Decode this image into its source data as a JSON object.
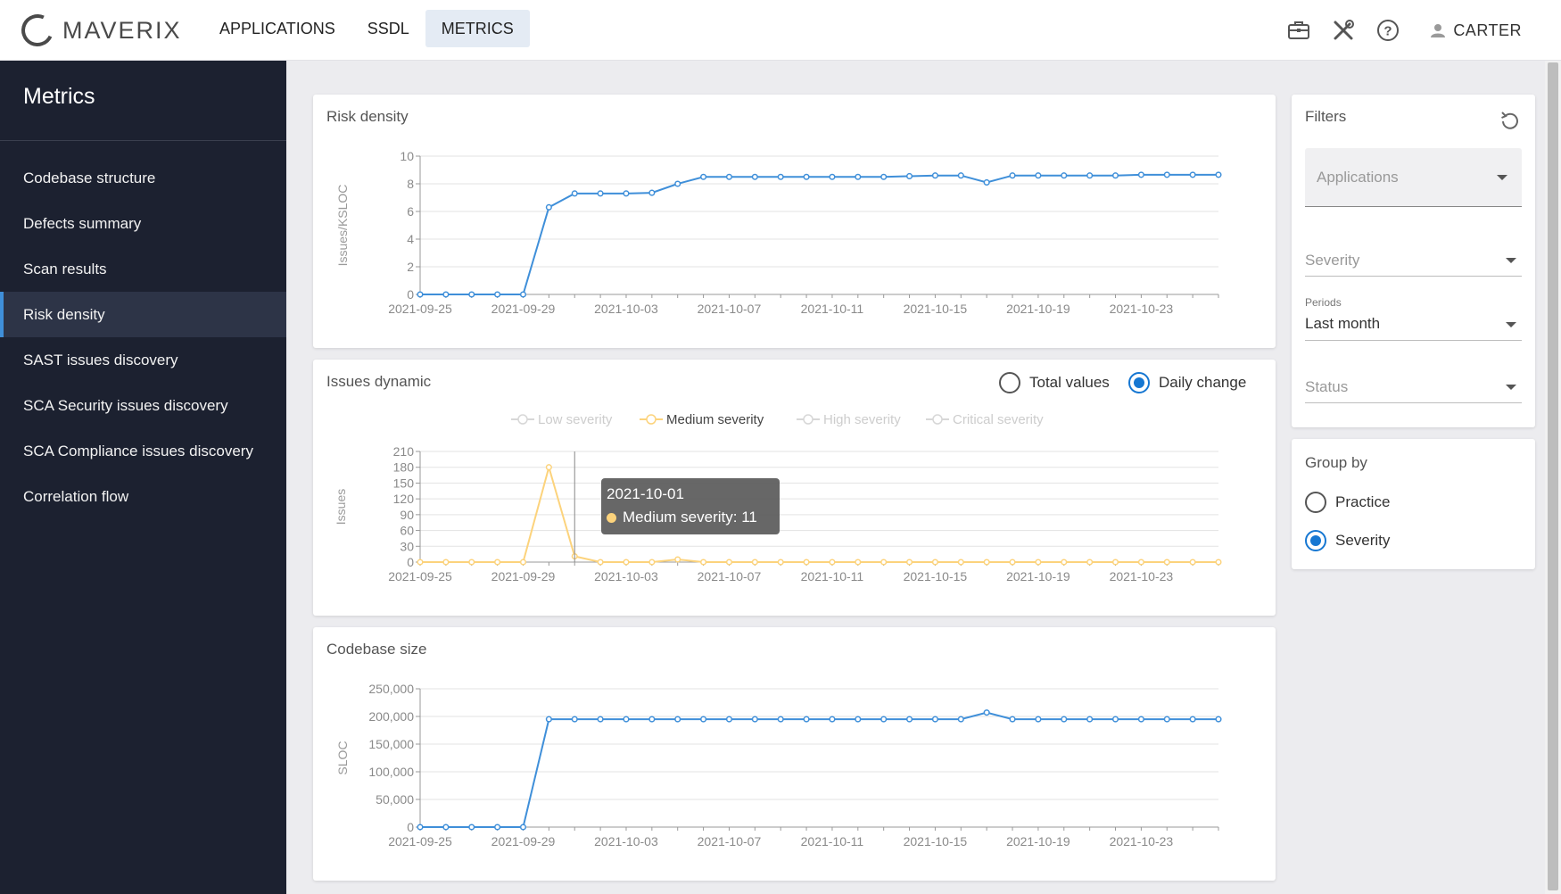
{
  "app": {
    "name": "MAVERIX"
  },
  "nav": {
    "items": [
      "APPLICATIONS",
      "SSDL",
      "METRICS"
    ],
    "active": "METRICS"
  },
  "user": {
    "name": "CARTER"
  },
  "icons": {
    "toolbox": "briefcase-icon",
    "tools": "wrench-screwdriver-icon",
    "help": "help-circle-icon",
    "user": "user-icon",
    "refresh": "refresh-icon"
  },
  "colors": {
    "accent": "#1677d2",
    "line_blue": "#3f8fd9",
    "medium_severity": "#fcd37c",
    "sidebar_bg": "#1c2130"
  },
  "sidebar": {
    "title": "Metrics",
    "items": [
      "Codebase structure",
      "Defects summary",
      "Scan results",
      "Risk density",
      "SAST issues discovery",
      "SCA Security issues discovery",
      "SCA Compliance issues discovery",
      "Correlation flow"
    ],
    "active": "Risk density"
  },
  "cards": {
    "risk_density": {
      "title": "Risk density"
    },
    "issues_dynamic": {
      "title": "Issues dynamic",
      "options": [
        "Total values",
        "Daily change"
      ],
      "selected": "Daily change",
      "tooltip": {
        "date": "2021-10-01",
        "label": "Medium severity: 11"
      }
    },
    "codebase_size": {
      "title": "Codebase size"
    }
  },
  "filters": {
    "title": "Filters",
    "applications_placeholder": "Applications",
    "severity_placeholder": "Severity",
    "periods_label": "Periods",
    "periods_value": "Last month",
    "status_placeholder": "Status"
  },
  "group_by": {
    "title": "Group by",
    "options": [
      "Practice",
      "Severity"
    ],
    "selected": "Severity"
  },
  "chart_data": [
    {
      "type": "line",
      "title": "Risk density",
      "ylabel": "Issues/KSLOC",
      "ylim": [
        0,
        10
      ],
      "yticks": [
        0,
        2,
        4,
        6,
        8,
        10
      ],
      "x_start": "2021-09-25",
      "xtick_labels": [
        "2021-09-25",
        "2021-09-29",
        "2021-10-03",
        "2021-10-07",
        "2021-10-11",
        "2021-10-15",
        "2021-10-19",
        "2021-10-23"
      ],
      "grid": true,
      "series": [
        {
          "color": "#3f8fd9",
          "values": [
            0,
            0,
            0,
            0,
            0,
            6.3,
            7.3,
            7.3,
            7.3,
            7.35,
            8.0,
            8.5,
            8.5,
            8.5,
            8.5,
            8.5,
            8.5,
            8.5,
            8.5,
            8.55,
            8.6,
            8.6,
            8.1,
            8.6,
            8.6,
            8.6,
            8.6,
            8.6,
            8.65,
            8.65,
            8.65,
            8.65
          ]
        }
      ]
    },
    {
      "type": "line",
      "title": "Issues dynamic",
      "ylabel": "Issues",
      "ylim": [
        0,
        210
      ],
      "yticks": [
        0,
        30,
        60,
        90,
        120,
        150,
        180,
        210
      ],
      "x_start": "2021-09-25",
      "xtick_labels": [
        "2021-09-25",
        "2021-09-29",
        "2021-10-03",
        "2021-10-07",
        "2021-10-11",
        "2021-10-15",
        "2021-10-19",
        "2021-10-23"
      ],
      "grid": true,
      "legend": [
        "Low severity",
        "Medium severity",
        "High severity",
        "Critical severity"
      ],
      "legend_active": "Medium severity",
      "legend_position": "top",
      "series": [
        {
          "name": "Medium severity",
          "color": "#fcd37c",
          "values": [
            0,
            0,
            0,
            0,
            0,
            180,
            11,
            0,
            0,
            0,
            5,
            0,
            0,
            0,
            0,
            0,
            0,
            0,
            0,
            0,
            0,
            0,
            0,
            0,
            0,
            0,
            0,
            0,
            0,
            0,
            0,
            0
          ]
        }
      ]
    },
    {
      "type": "line",
      "title": "Codebase size",
      "ylabel": "SLOC",
      "ylim": [
        0,
        250000
      ],
      "yticks": [
        0,
        50000,
        100000,
        150000,
        200000,
        250000
      ],
      "ytick_labels": [
        "0",
        "50,000",
        "100,000",
        "150,000",
        "200,000",
        "250,000"
      ],
      "x_start": "2021-09-25",
      "xtick_labels": [
        "2021-09-25",
        "2021-09-29",
        "2021-10-03",
        "2021-10-07",
        "2021-10-11",
        "2021-10-15",
        "2021-10-19",
        "2021-10-23"
      ],
      "grid": true,
      "series": [
        {
          "color": "#3f8fd9",
          "values": [
            0,
            0,
            0,
            0,
            0,
            195000,
            195000,
            195000,
            195000,
            195000,
            195000,
            195000,
            195000,
            195000,
            195000,
            195000,
            195000,
            195000,
            195000,
            195000,
            195000,
            195000,
            207000,
            195000,
            195000,
            195000,
            195000,
            195000,
            195000,
            195000,
            195000,
            195000
          ]
        }
      ]
    }
  ]
}
